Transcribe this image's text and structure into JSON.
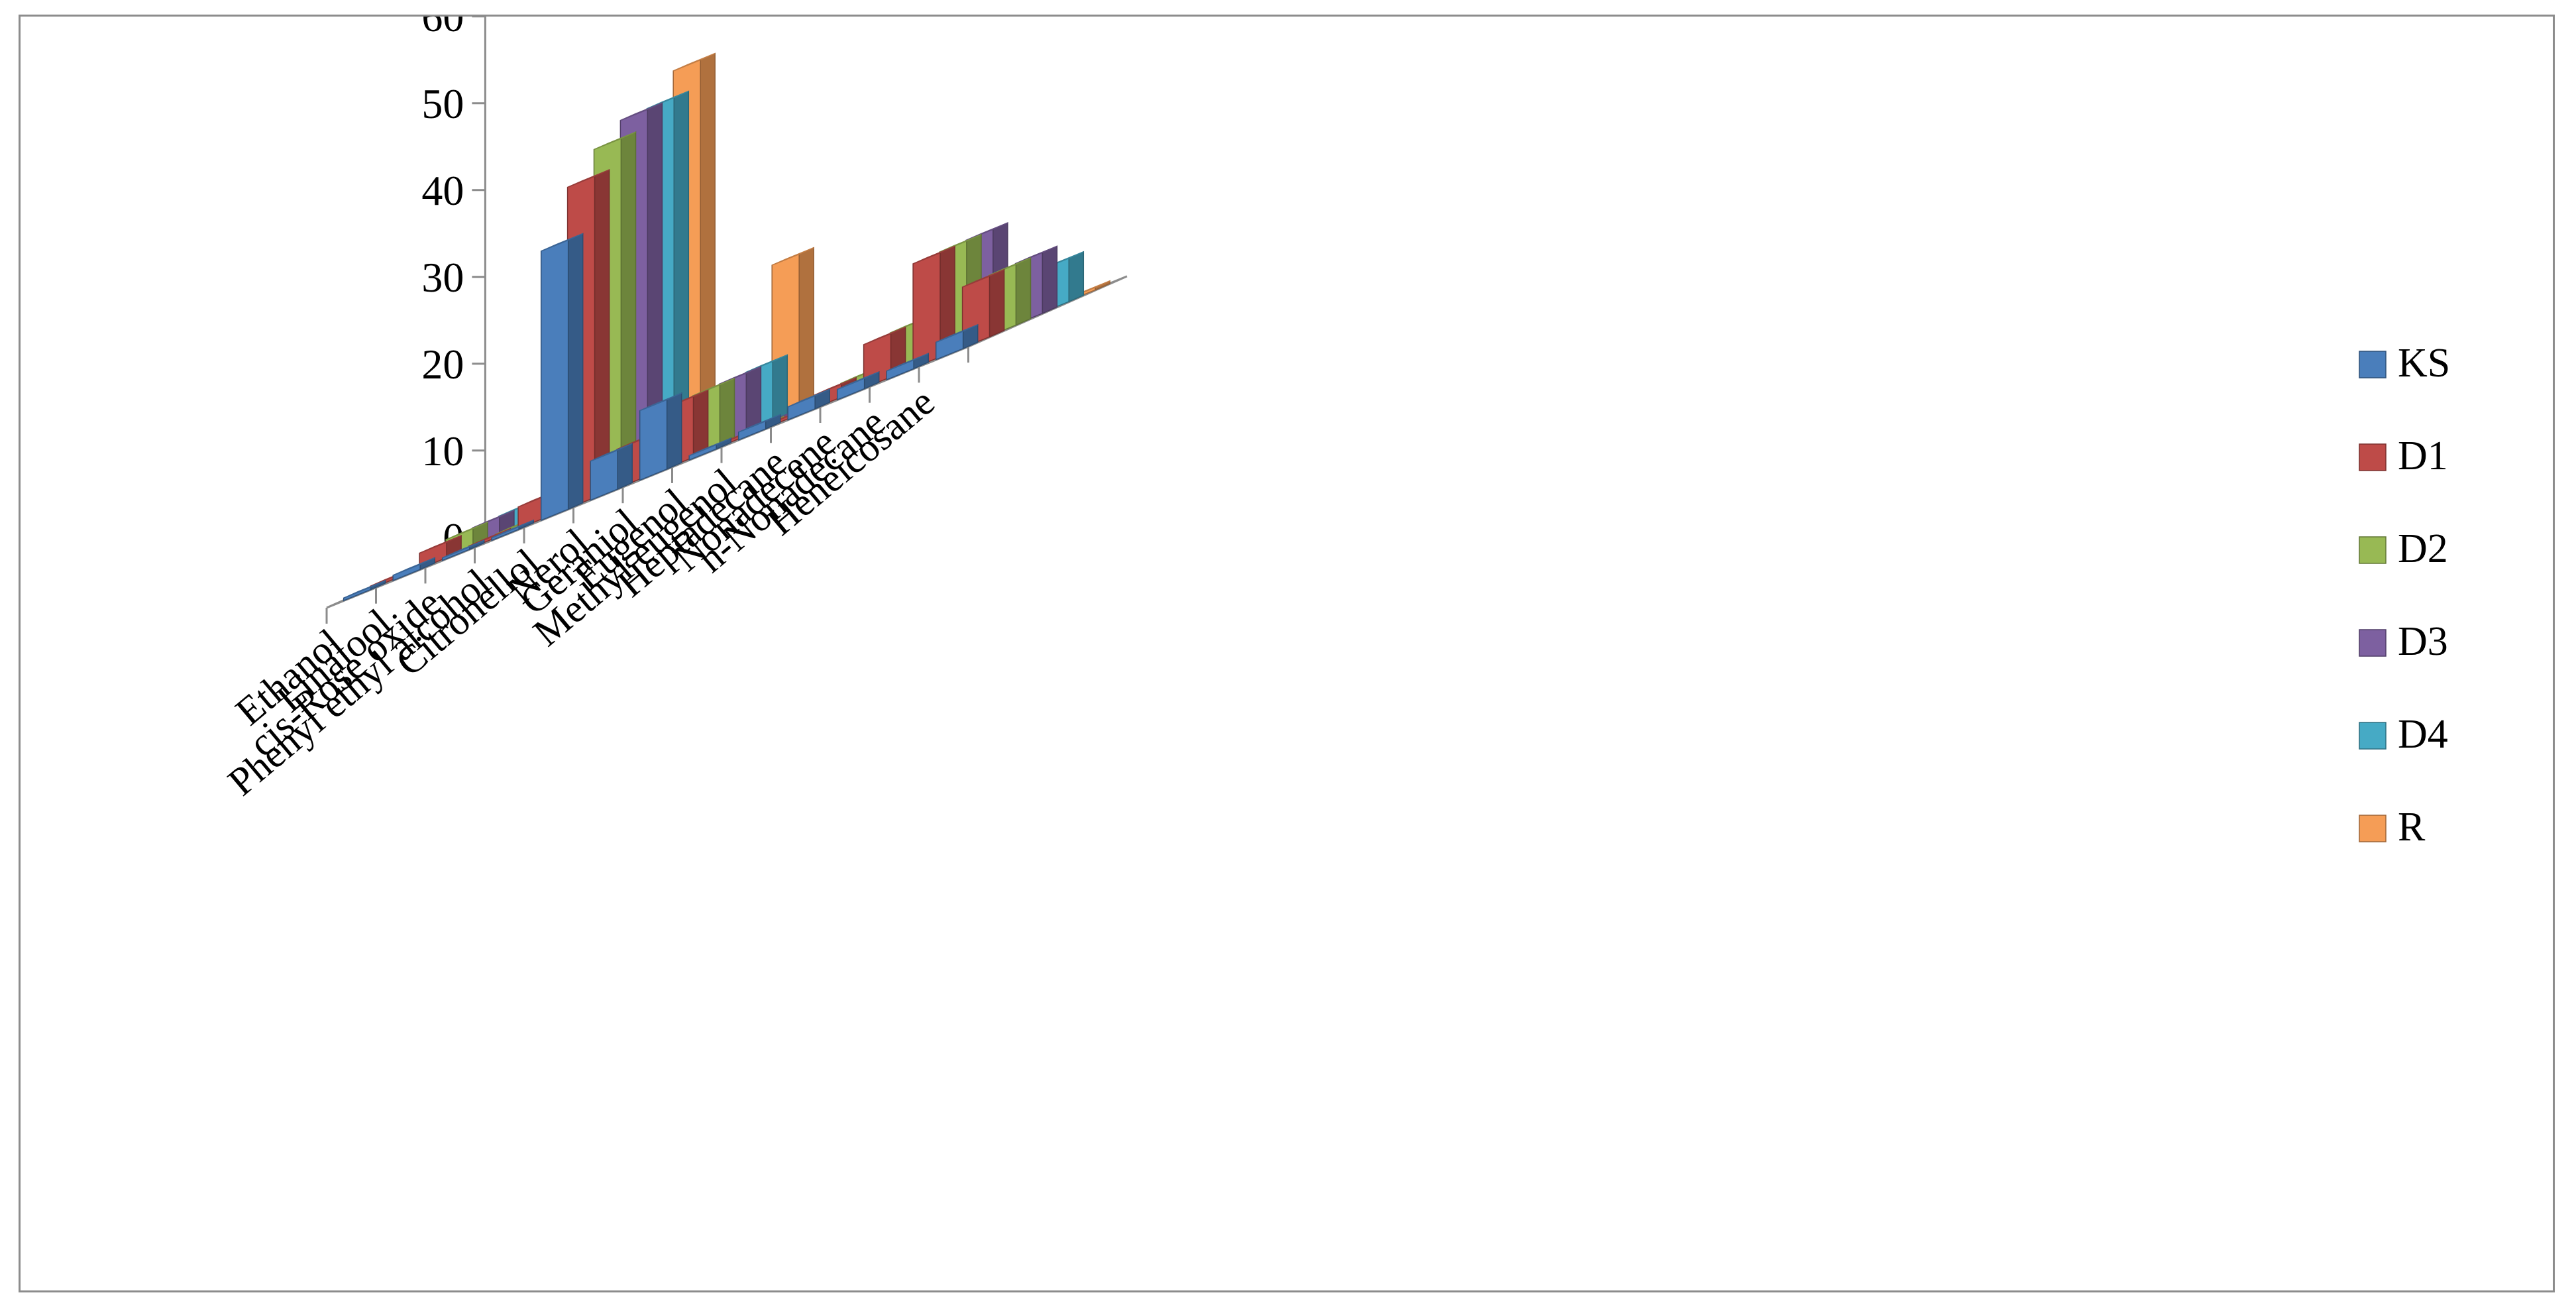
{
  "chart_data": {
    "type": "bar",
    "variant": "3d-column",
    "title": "",
    "xlabel": "",
    "ylabel": "",
    "ylim": [
      0,
      60
    ],
    "y_ticks": [
      0,
      10,
      20,
      30,
      40,
      50,
      60
    ],
    "categories": [
      "Ethanol",
      "Linalool",
      "cis-Rose oxide",
      "Phenyl ethyl alcohol",
      "Citronellol",
      "Nerol",
      "Geraniol",
      "Eugenol",
      "Methyl eugenol",
      "Heptadecane",
      "Nonadecene",
      "n-Nonadecane",
      "Heneicosane"
    ],
    "series": [
      {
        "name": "KS",
        "color": "#4a7ebb",
        "values": [
          0.3,
          0.6,
          0.3,
          0.3,
          31,
          4.5,
          8,
          0.5,
          0.9,
          1.5,
          1.2,
          1,
          2
        ]
      },
      {
        "name": "D1",
        "color": "#be4b48",
        "values": [
          0.3,
          1.8,
          0.3,
          2.5,
          37,
          4.5,
          7,
          0.3,
          0.3,
          1.5,
          5,
          12,
          7
        ]
      },
      {
        "name": "D2",
        "color": "#98b954",
        "values": [
          0.3,
          2,
          0.3,
          1,
          40,
          4.5,
          7,
          0.3,
          0.3,
          1.5,
          5,
          12,
          7
        ]
      },
      {
        "name": "D3",
        "color": "#7d60a0",
        "values": [
          0.3,
          2,
          0.3,
          1,
          42,
          5,
          7,
          0.3,
          0.3,
          1.5,
          5,
          12,
          7
        ]
      },
      {
        "name": "D4",
        "color": "#46aac5",
        "values": [
          0.3,
          2,
          0.3,
          1,
          42,
          5,
          7,
          0.3,
          0.3,
          1.5,
          5,
          5,
          5
        ]
      },
      {
        "name": "R",
        "color": "#f59d56",
        "values": [
          0.3,
          2,
          0.3,
          1,
          45,
          5,
          18,
          0.3,
          1.5,
          0.3,
          0.3,
          0.3,
          0.3
        ]
      }
    ],
    "legend_position": "right",
    "grid": false
  }
}
